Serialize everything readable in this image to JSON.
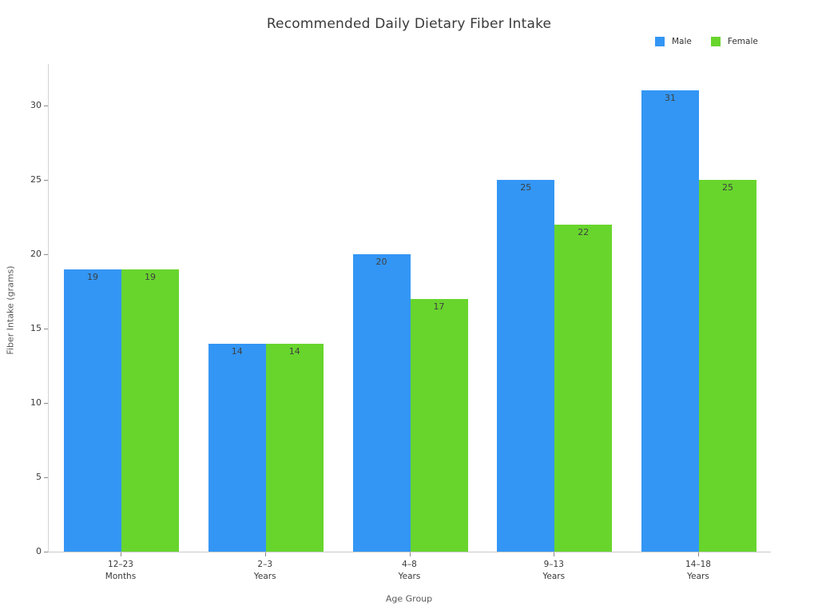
{
  "chart_data": {
    "type": "bar",
    "title": "Recommended Daily Dietary Fiber Intake",
    "xlabel": "Age Group",
    "ylabel": "Fiber Intake (grams)",
    "categories": [
      [
        "12–23",
        "Months"
      ],
      [
        "2–3",
        "Years"
      ],
      [
        "4–8",
        "Years"
      ],
      [
        "9–13",
        "Years"
      ],
      [
        "14–18",
        "Years"
      ]
    ],
    "series": [
      {
        "name": "Male",
        "color": "#3396F5",
        "values": [
          19,
          14,
          20,
          25,
          31
        ]
      },
      {
        "name": "Female",
        "color": "#68D52D",
        "values": [
          19,
          14,
          17,
          22,
          25
        ]
      }
    ],
    "yticks": [
      0,
      5,
      10,
      15,
      20,
      25,
      30
    ],
    "ylim": [
      0,
      32.8
    ],
    "grid": false,
    "legend_position": "top-right",
    "value_labels": true
  }
}
